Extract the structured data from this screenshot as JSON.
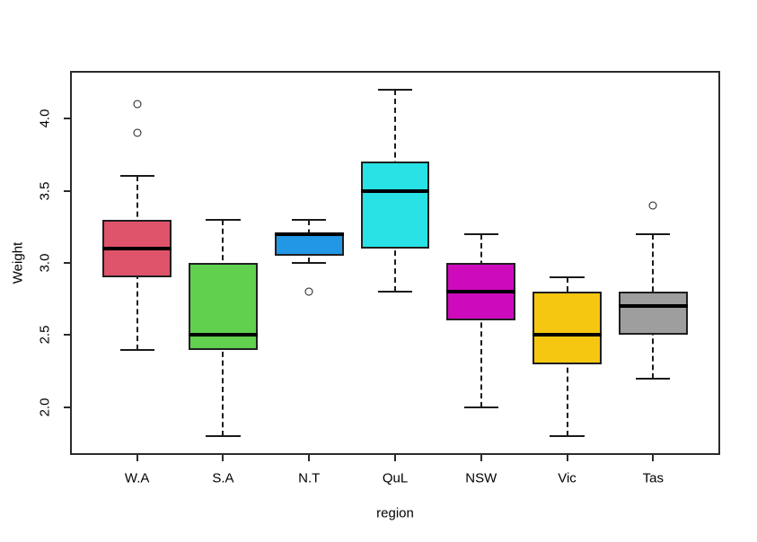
{
  "chart_data": {
    "type": "boxplot",
    "title": "",
    "xlabel": "region",
    "ylabel": "Weight",
    "categories": [
      "W.A",
      "S.A",
      "N.T",
      "QuL",
      "NSW",
      "Vic",
      "Tas"
    ],
    "y_ticks": [
      {
        "value": 2.0,
        "label": "2.0"
      },
      {
        "value": 2.5,
        "label": "2.5"
      },
      {
        "value": 3.0,
        "label": "3.0"
      },
      {
        "value": 3.5,
        "label": "3.5"
      },
      {
        "value": 4.0,
        "label": "4.0"
      }
    ],
    "ylim": [
      1.67,
      4.33
    ],
    "grid": false,
    "legend": "none",
    "background_color": "#FFFFFF",
    "axis_color": "#2B2B2B",
    "text_color": "#000000",
    "boxes": [
      {
        "label": "W.A",
        "color": "#DF536B",
        "whisker_low": 2.4,
        "q1": 2.9,
        "median": 3.1,
        "q3": 3.3,
        "whisker_high": 3.6,
        "outliers": [
          3.9,
          4.1
        ]
      },
      {
        "label": "S.A",
        "color": "#61D04F",
        "whisker_low": 1.8,
        "q1": 2.4,
        "median": 2.5,
        "q3": 3.0,
        "whisker_high": 3.3,
        "outliers": []
      },
      {
        "label": "N.T",
        "color": "#2297E6",
        "whisker_low": 3.0,
        "q1": 3.05,
        "median": 3.2,
        "q3": 3.2,
        "whisker_high": 3.3,
        "outliers": [
          2.8
        ]
      },
      {
        "label": "QuL",
        "color": "#28E2E5",
        "whisker_low": 2.8,
        "q1": 3.1,
        "median": 3.5,
        "q3": 3.7,
        "whisker_high": 4.2,
        "outliers": []
      },
      {
        "label": "NSW",
        "color": "#CD0BBC",
        "whisker_low": 2.0,
        "q1": 2.6,
        "median": 2.8,
        "q3": 3.0,
        "whisker_high": 3.2,
        "outliers": []
      },
      {
        "label": "Vic",
        "color": "#F5C710",
        "whisker_low": 1.8,
        "q1": 2.3,
        "median": 2.5,
        "q3": 2.8,
        "whisker_high": 2.9,
        "outliers": []
      },
      {
        "label": "Tas",
        "color": "#9E9E9E",
        "whisker_low": 2.2,
        "q1": 2.5,
        "median": 2.7,
        "q3": 2.8,
        "whisker_high": 3.2,
        "outliers": [
          3.4
        ]
      }
    ]
  }
}
